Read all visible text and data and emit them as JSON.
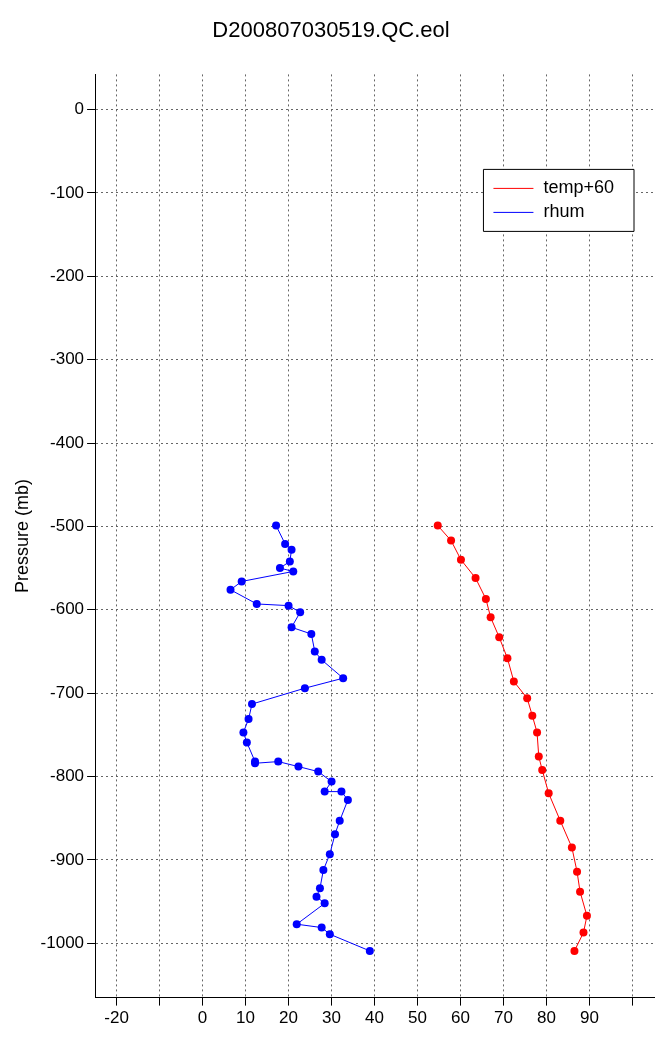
{
  "chart_data": {
    "type": "line",
    "title": "D200807030519.QC.eol",
    "ylabel": "Pressure (mb)",
    "xlim": [
      -25,
      105
    ],
    "xticks": [
      -20,
      {
        "value": -10,
        "label": null
      },
      0,
      10,
      20,
      30,
      40,
      50,
      60,
      70,
      80,
      90,
      {
        "value": 100,
        "label": null
      }
    ],
    "ylim": [
      -1065,
      42
    ],
    "yticks": [
      0,
      -100,
      -200,
      -300,
      -400,
      -500,
      -600,
      -700,
      -800,
      -900,
      -1000
    ],
    "grid": true,
    "legend": "top right",
    "marker": "circle",
    "line_style": "solid",
    "series": [
      {
        "name": "temp+60",
        "color": "#ff0000",
        "x": [
          54.7,
          57.8,
          60.1,
          63.5,
          65.9,
          67.0,
          69.0,
          70.9,
          72.4,
          75.5,
          76.7,
          77.8,
          78.2,
          79.0,
          80.5,
          83.2,
          85.9,
          87.1,
          87.8,
          89.4,
          88.6,
          86.5
        ],
        "values": [
          -499,
          -517,
          -540,
          -562,
          -587,
          -609,
          -633,
          -658,
          -686,
          -706,
          -727,
          -747,
          -776,
          -792,
          -820,
          -853,
          -885,
          -914,
          -938,
          -967,
          -987,
          -1009
        ]
      },
      {
        "name": "rhum",
        "color": "#0000ff",
        "x": [
          17.1,
          19.2,
          20.7,
          20.3,
          18.0,
          21.1,
          9.1,
          6.5,
          12.6,
          20.0,
          22.7,
          20.7,
          25.3,
          26.1,
          27.7,
          32.7,
          23.8,
          11.5,
          10.7,
          9.5,
          10.3,
          12.2,
          12.2,
          17.6,
          22.3,
          26.9,
          30.0,
          28.4,
          32.3,
          33.8,
          31.9,
          30.8,
          29.6,
          28.1,
          27.3,
          26.5,
          28.4,
          21.9,
          27.7,
          29.6,
          38.9
        ],
        "values": [
          -499,
          -521,
          -528,
          -542,
          -550,
          -554,
          -566,
          -576,
          -593,
          -595,
          -603,
          -621,
          -629,
          -650,
          -660,
          -682,
          -694,
          -713,
          -731,
          -747,
          -759,
          -782,
          -784,
          -782,
          -788,
          -794,
          -806,
          -818,
          -818,
          -828,
          -853,
          -869,
          -893,
          -912,
          -934,
          -944,
          -952,
          -977,
          -981,
          -989,
          -1009
        ]
      }
    ]
  }
}
